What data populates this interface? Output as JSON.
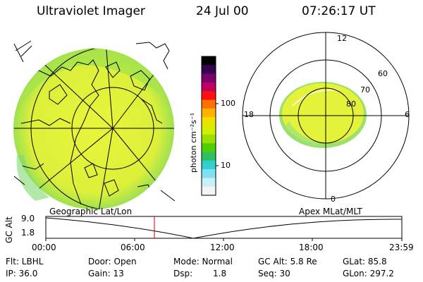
{
  "header": {
    "instrument": "Ultraviolet Imager",
    "date": "24 Jul 00",
    "time": "07:26:17 UT"
  },
  "colorbar": {
    "label": "photon cm⁻²s⁻¹",
    "ticks": [
      "100",
      "10"
    ],
    "colors": [
      "#000000",
      "#3a0050",
      "#7a0070",
      "#c00060",
      "#ff1010",
      "#ff7000",
      "#ffb000",
      "#f0e000",
      "#d0f000",
      "#9be000",
      "#50d000",
      "#30c060",
      "#30d0d0",
      "#80e0f0",
      "#c8f0f8",
      "#f4f4f4"
    ]
  },
  "polar_plot": {
    "lat_labels": [
      "60",
      "70",
      "80"
    ],
    "mlt_labels": {
      "top": "12",
      "left": "18",
      "right": "6",
      "bottom": "0"
    }
  },
  "panels": {
    "left_title": "Geographic Lat/Lon",
    "right_title": "Apex MLat/MLT"
  },
  "altitude_plot": {
    "ylabel": "GC Alt",
    "yticks": [
      "9.0",
      "1.8"
    ],
    "xticks": [
      "00:00",
      "06:00",
      "12:00",
      "18:00",
      "23:59"
    ]
  },
  "footer": {
    "row1": {
      "flt": "Flt: LBHL",
      "door": "Door: Open",
      "mode": "Mode: Normal",
      "gcalt": "GC Alt: 5.8 Re",
      "glat": "GLat: 85.8"
    },
    "row2": {
      "ip": "IP: 36.0",
      "gain": "Gain: 13",
      "dsp_label": "Dsp:",
      "dsp_value": "1.8",
      "seq": "Seq: 30",
      "glon": "GLon: 297.2"
    }
  },
  "colors": {
    "image_fill": "#e4f23a",
    "grid": "#000000",
    "marker": "#cc0000"
  }
}
